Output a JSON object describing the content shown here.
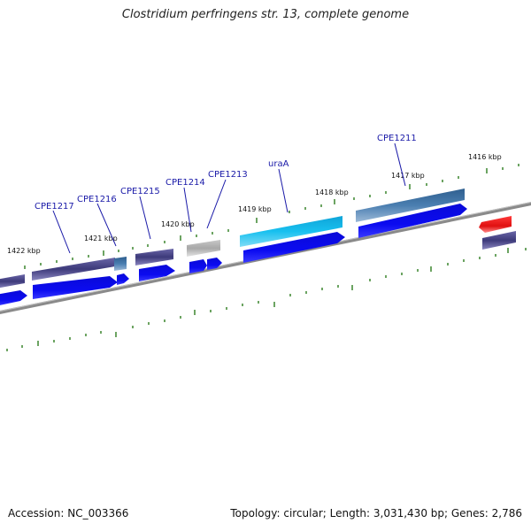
{
  "title": "Clostridium perfringens str. 13, complete genome",
  "footer": {
    "accession": "Accession: NC_003366",
    "summary": "Topology: circular; Length: 3,031,430 bp; Genes: 2,786"
  },
  "scale_labels": [
    "1422 kbp",
    "1421 kbp",
    "1420 kbp",
    "1419 kbp",
    "1418 kbp",
    "1417 kbp",
    "1416 kbp"
  ],
  "gene_labels": [
    "CPE1217",
    "CPE1216",
    "CPE1215",
    "CPE1214",
    "CPE1213",
    "uraA",
    "CPE1211"
  ],
  "colors": {
    "backbone": "#7d7d7d",
    "tick": "#2e7d1e",
    "cds": "#0b0be0",
    "gene_dark": "#3d3a7a",
    "gene_light": "#3f6fa0",
    "gene_cyan": "#18b8e8",
    "gene_gray": "#a8a8a8",
    "gene_red": "#e01010",
    "label": "#1a1aa8"
  }
}
